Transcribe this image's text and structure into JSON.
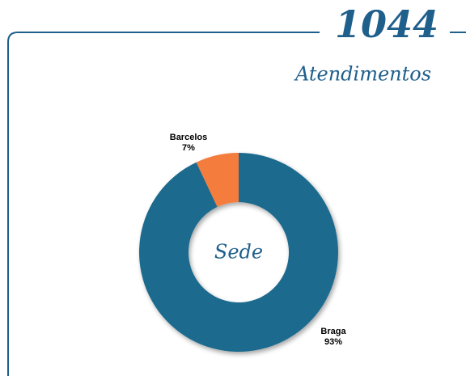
{
  "header": {
    "count": 1044,
    "label": "Atendimentos"
  },
  "chart_data": {
    "type": "pie",
    "center_label": "Sede",
    "categories": [
      "Braga",
      "Barcelos"
    ],
    "values": [
      93,
      7
    ],
    "value_labels": [
      "93%",
      "7%"
    ],
    "colors": [
      "#1c6a8e",
      "#f47c3c"
    ]
  }
}
